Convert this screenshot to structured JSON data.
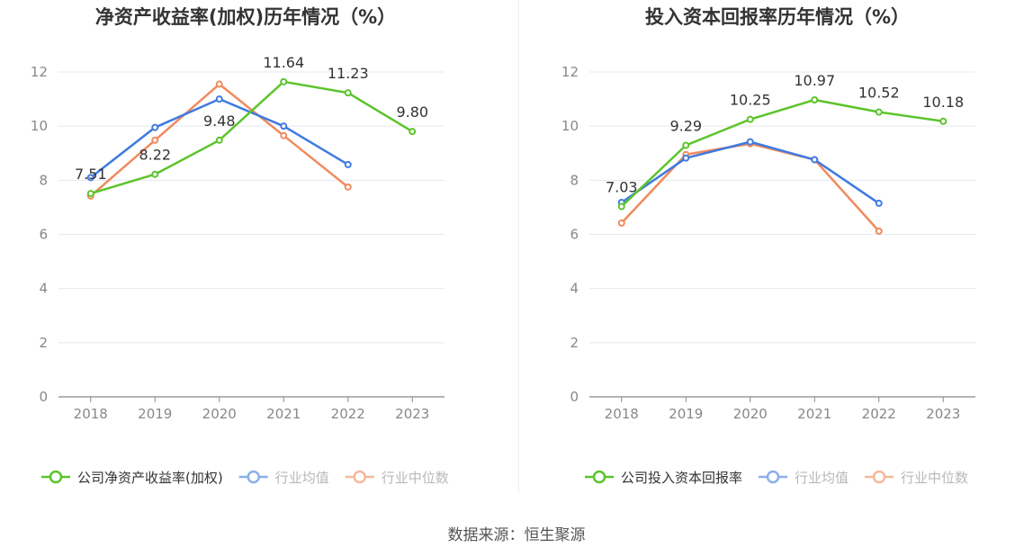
{
  "chart_data": [
    {
      "type": "line",
      "title": "净资产收益率(加权)历年情况（%）",
      "categories": [
        "2018",
        "2019",
        "2020",
        "2021",
        "2022",
        "2023"
      ],
      "ylim": [
        0,
        12
      ],
      "yticks": [
        0,
        2,
        4,
        6,
        8,
        10,
        12
      ],
      "grid": true,
      "legend_position": "bottom",
      "series": [
        {
          "name": "公司净资产收益率(加权)",
          "color": "#5cc42b",
          "values": [
            7.51,
            8.22,
            9.48,
            11.64,
            11.23,
            9.8
          ],
          "labels": [
            "7.51",
            "8.22",
            "9.48",
            "11.64",
            "11.23",
            "9.80"
          ]
        },
        {
          "name": "行业均值",
          "color": "#3f7ae0",
          "values": [
            8.1,
            9.95,
            11.0,
            10.0,
            8.58,
            null
          ],
          "labels": null
        },
        {
          "name": "行业中位数",
          "color": "#f08a5d",
          "values": [
            7.42,
            9.48,
            11.55,
            9.65,
            7.75,
            null
          ],
          "labels": null
        }
      ]
    },
    {
      "type": "line",
      "title": "投入资本回报率历年情况（%）",
      "categories": [
        "2018",
        "2019",
        "2020",
        "2021",
        "2022",
        "2023"
      ],
      "ylim": [
        0,
        12
      ],
      "yticks": [
        0,
        2,
        4,
        6,
        8,
        10,
        12
      ],
      "grid": true,
      "legend_position": "bottom",
      "series": [
        {
          "name": "公司投入资本回报率",
          "color": "#5cc42b",
          "values": [
            7.03,
            9.29,
            10.25,
            10.97,
            10.52,
            10.18
          ],
          "labels": [
            "7.03",
            "9.29",
            "10.25",
            "10.97",
            "10.52",
            "10.18"
          ]
        },
        {
          "name": "行业均值",
          "color": "#3f7ae0",
          "values": [
            7.18,
            8.82,
            9.42,
            8.76,
            7.15,
            null
          ],
          "labels": null
        },
        {
          "name": "行业中位数",
          "color": "#f08a5d",
          "values": [
            6.42,
            8.95,
            9.35,
            8.76,
            6.12,
            null
          ],
          "labels": null
        }
      ]
    }
  ],
  "footer": {
    "source": "数据来源：恒生聚源"
  }
}
